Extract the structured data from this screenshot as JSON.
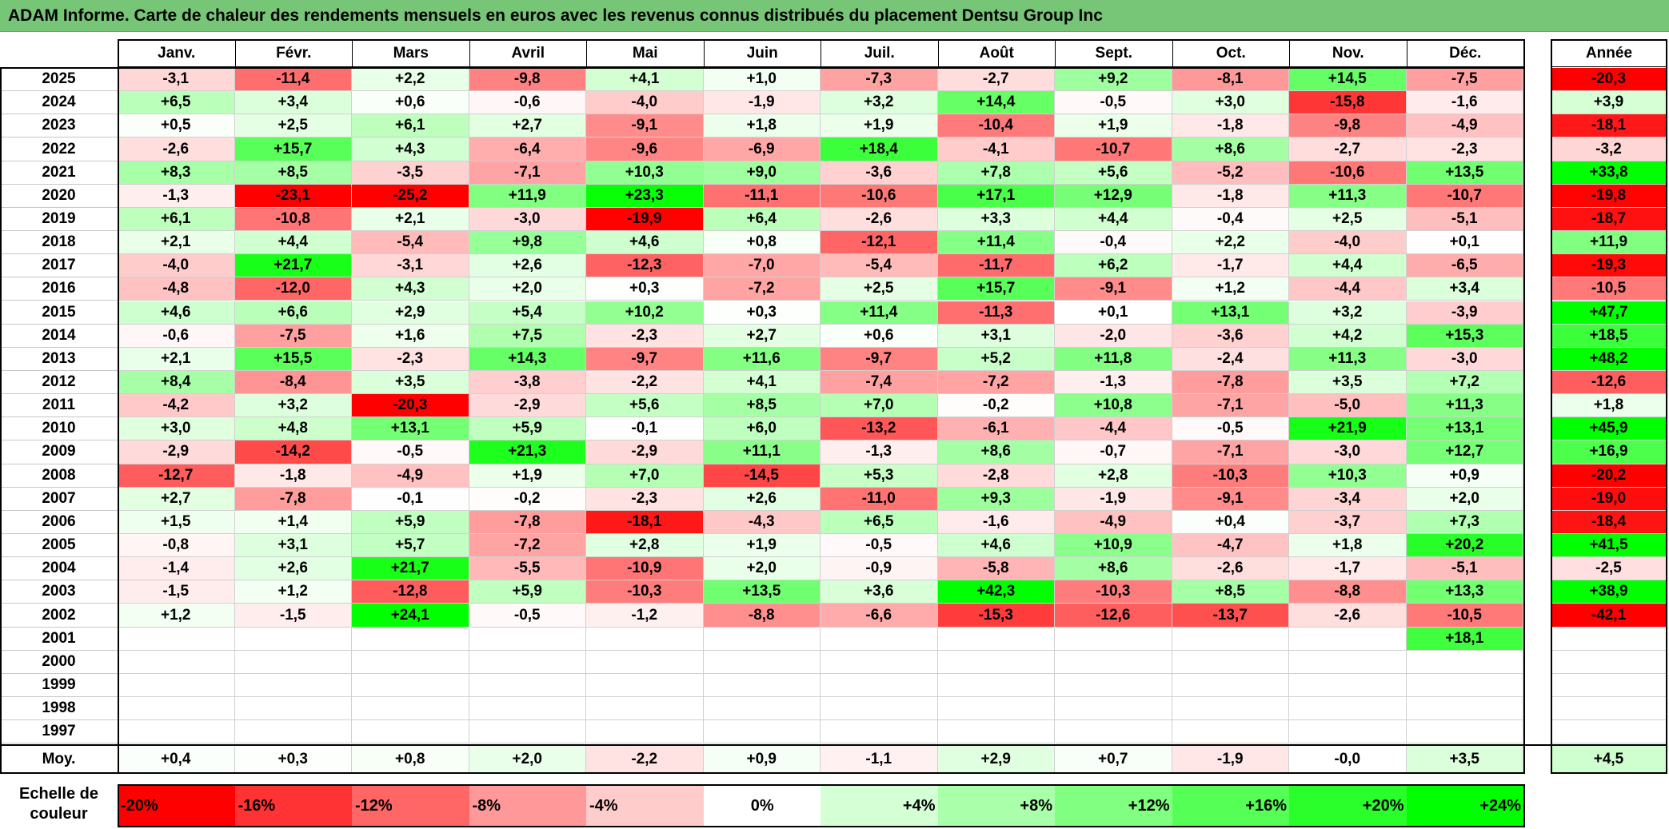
{
  "title": "ADAM Informe. Carte de chaleur des rendements mensuels en euros avec les revenus connus distribués du placement Dentsu Group Inc",
  "chart_data": {
    "type": "heatmap",
    "months": [
      "Janv.",
      "Févr.",
      "Mars",
      "Avril",
      "Mai",
      "Juin",
      "Juil.",
      "Août",
      "Sept.",
      "Oct.",
      "Nov.",
      "Déc."
    ],
    "year_header": "Année",
    "avg_label": "Moy.",
    "rows": [
      {
        "year": "2025",
        "values": [
          "-3,1",
          "-11,4",
          "+2,2",
          "-9,8",
          "+4,1",
          "+1,0",
          "-7,3",
          "-2,7",
          "+9,2",
          "-8,1",
          "+14,5",
          "-7,5"
        ],
        "annual": "-20,3"
      },
      {
        "year": "2024",
        "values": [
          "+6,5",
          "+3,4",
          "+0,6",
          "-0,6",
          "-4,0",
          "-1,9",
          "+3,2",
          "+14,4",
          "-0,5",
          "+3,0",
          "-15,8",
          "-1,6"
        ],
        "annual": "+3,9"
      },
      {
        "year": "2023",
        "values": [
          "+0,5",
          "+2,5",
          "+6,1",
          "+2,7",
          "-9,1",
          "+1,8",
          "+1,9",
          "-10,4",
          "+1,9",
          "-1,8",
          "-9,8",
          "-4,9"
        ],
        "annual": "-18,1"
      },
      {
        "year": "2022",
        "values": [
          "-2,6",
          "+15,7",
          "+4,3",
          "-6,4",
          "-9,6",
          "-6,9",
          "+18,4",
          "-4,1",
          "-10,7",
          "+8,6",
          "-2,7",
          "-2,3"
        ],
        "annual": "-3,2"
      },
      {
        "year": "2021",
        "values": [
          "+8,3",
          "+8,5",
          "-3,5",
          "-7,1",
          "+10,3",
          "+9,0",
          "-3,6",
          "+7,8",
          "+5,6",
          "-5,2",
          "-10,6",
          "+13,5"
        ],
        "annual": "+33,8"
      },
      {
        "year": "2020",
        "values": [
          "-1,3",
          "-23,1",
          "-25,2",
          "+11,9",
          "+23,3",
          "-11,1",
          "-10,6",
          "+17,1",
          "+12,9",
          "-1,8",
          "+11,3",
          "-10,7"
        ],
        "annual": "-19,8"
      },
      {
        "year": "2019",
        "values": [
          "+6,1",
          "-10,8",
          "+2,1",
          "-3,0",
          "-19,9",
          "+6,4",
          "-2,6",
          "+3,3",
          "+4,4",
          "-0,4",
          "+2,5",
          "-5,1"
        ],
        "annual": "-18,7"
      },
      {
        "year": "2018",
        "values": [
          "+2,1",
          "+4,4",
          "-5,4",
          "+9,8",
          "+4,6",
          "+0,8",
          "-12,1",
          "+11,4",
          "-0,4",
          "+2,2",
          "-4,0",
          "+0,1"
        ],
        "annual": "+11,9"
      },
      {
        "year": "2017",
        "values": [
          "-4,0",
          "+21,7",
          "-3,1",
          "+2,6",
          "-12,3",
          "-7,0",
          "-5,4",
          "-11,7",
          "+6,2",
          "-1,7",
          "+4,4",
          "-6,5"
        ],
        "annual": "-19,3"
      },
      {
        "year": "2016",
        "values": [
          "-4,8",
          "-12,0",
          "+4,3",
          "+2,0",
          "+0,3",
          "-7,2",
          "+2,5",
          "+15,7",
          "-9,1",
          "+1,2",
          "-4,4",
          "+3,4"
        ],
        "annual": "-10,5"
      },
      {
        "year": "2015",
        "values": [
          "+4,6",
          "+6,6",
          "+2,9",
          "+5,4",
          "+10,2",
          "+0,3",
          "+11,4",
          "-11,3",
          "+0,1",
          "+13,1",
          "+3,2",
          "-3,9"
        ],
        "annual": "+47,7"
      },
      {
        "year": "2014",
        "values": [
          "-0,6",
          "-7,5",
          "+1,6",
          "+7,5",
          "-2,3",
          "+2,7",
          "+0,6",
          "+3,1",
          "-2,0",
          "-3,6",
          "+4,2",
          "+15,3"
        ],
        "annual": "+18,5"
      },
      {
        "year": "2013",
        "values": [
          "+2,1",
          "+15,5",
          "-2,3",
          "+14,3",
          "-9,7",
          "+11,6",
          "-9,7",
          "+5,2",
          "+11,8",
          "-2,4",
          "+11,3",
          "-3,0"
        ],
        "annual": "+48,2"
      },
      {
        "year": "2012",
        "values": [
          "+8,4",
          "-8,4",
          "+3,5",
          "-3,8",
          "-2,2",
          "+4,1",
          "-7,4",
          "-7,2",
          "-1,3",
          "-7,8",
          "+3,5",
          "+7,2"
        ],
        "annual": "-12,6"
      },
      {
        "year": "2011",
        "values": [
          "-4,2",
          "+3,2",
          "-20,3",
          "-2,9",
          "+5,6",
          "+8,5",
          "+7,0",
          "-0,2",
          "+10,8",
          "-7,1",
          "-5,0",
          "+11,3"
        ],
        "annual": "+1,8"
      },
      {
        "year": "2010",
        "values": [
          "+3,0",
          "+4,8",
          "+13,1",
          "+5,9",
          "-0,1",
          "+6,0",
          "-13,2",
          "-6,1",
          "-4,4",
          "-0,5",
          "+21,9",
          "+13,1"
        ],
        "annual": "+45,9"
      },
      {
        "year": "2009",
        "values": [
          "-2,9",
          "-14,2",
          "-0,5",
          "+21,3",
          "-2,9",
          "+11,1",
          "-1,3",
          "+8,6",
          "-0,7",
          "-7,1",
          "-3,0",
          "+12,7"
        ],
        "annual": "+16,9"
      },
      {
        "year": "2008",
        "values": [
          "-12,7",
          "-1,8",
          "-4,9",
          "+1,9",
          "+7,0",
          "-14,5",
          "+5,3",
          "-2,8",
          "+2,8",
          "-10,3",
          "+10,3",
          "+0,9"
        ],
        "annual": "-20,2"
      },
      {
        "year": "2007",
        "values": [
          "+2,7",
          "-7,8",
          "-0,1",
          "-0,2",
          "-2,3",
          "+2,6",
          "-11,0",
          "+9,3",
          "-1,9",
          "-9,1",
          "-3,4",
          "+2,0"
        ],
        "annual": "-19,0"
      },
      {
        "year": "2006",
        "values": [
          "+1,5",
          "+1,4",
          "+5,9",
          "-7,8",
          "-18,1",
          "-4,3",
          "+6,5",
          "-1,6",
          "-4,9",
          "+0,4",
          "-3,7",
          "+7,3"
        ],
        "annual": "-18,4"
      },
      {
        "year": "2005",
        "values": [
          "-0,8",
          "+3,1",
          "+5,7",
          "-7,2",
          "+2,8",
          "+1,9",
          "-0,5",
          "+4,6",
          "+10,9",
          "-4,7",
          "+1,8",
          "+20,2"
        ],
        "annual": "+41,5"
      },
      {
        "year": "2004",
        "values": [
          "-1,4",
          "+2,6",
          "+21,7",
          "-5,5",
          "-10,9",
          "+2,0",
          "-0,9",
          "-5,8",
          "+8,6",
          "-2,6",
          "-1,7",
          "-5,1"
        ],
        "annual": "-2,5"
      },
      {
        "year": "2003",
        "values": [
          "-1,5",
          "+1,2",
          "-12,8",
          "+5,9",
          "-10,3",
          "+13,5",
          "+3,6",
          "+42,3",
          "-10,3",
          "+8,5",
          "-8,8",
          "+13,3"
        ],
        "annual": "+38,9"
      },
      {
        "year": "2002",
        "values": [
          "+1,2",
          "-1,5",
          "+24,1",
          "-0,5",
          "-1,2",
          "-8,8",
          "-6,6",
          "-15,3",
          "-12,6",
          "-13,7",
          "-2,6",
          "-10,5"
        ],
        "annual": "-42,1"
      },
      {
        "year": "2001",
        "values": [
          "",
          "",
          "",
          "",
          "",
          "",
          "",
          "",
          "",
          "",
          "",
          "+18,1"
        ],
        "annual": ""
      },
      {
        "year": "2000",
        "values": [
          "",
          "",
          "",
          "",
          "",
          "",
          "",
          "",
          "",
          "",
          "",
          ""
        ],
        "annual": ""
      },
      {
        "year": "1999",
        "values": [
          "",
          "",
          "",
          "",
          "",
          "",
          "",
          "",
          "",
          "",
          "",
          ""
        ],
        "annual": ""
      },
      {
        "year": "1998",
        "values": [
          "",
          "",
          "",
          "",
          "",
          "",
          "",
          "",
          "",
          "",
          "",
          ""
        ],
        "annual": ""
      },
      {
        "year": "1997",
        "values": [
          "",
          "",
          "",
          "",
          "",
          "",
          "",
          "",
          "",
          "",
          "",
          ""
        ],
        "annual": ""
      }
    ],
    "averages": [
      "+0,4",
      "+0,3",
      "+0,8",
      "+2,0",
      "-2,2",
      "+0,9",
      "-1,1",
      "+2,9",
      "+0,7",
      "-1,9",
      "-0,0",
      "+3,5"
    ],
    "avg_annual": "+4,5",
    "scale_label": "Echelle de couleur",
    "scale": [
      {
        "label": "-20%",
        "value": -20
      },
      {
        "label": "-16%",
        "value": -16
      },
      {
        "label": "-12%",
        "value": -12
      },
      {
        "label": "-8%",
        "value": -8
      },
      {
        "label": "-4%",
        "value": -4
      },
      {
        "label": "0%",
        "value": 0
      },
      {
        "label": "+4%",
        "value": 4
      },
      {
        "label": "+8%",
        "value": 8
      },
      {
        "label": "+12%",
        "value": 12
      },
      {
        "label": "+16%",
        "value": 16
      },
      {
        "label": "+20%",
        "value": 20
      },
      {
        "label": "+24%",
        "value": 24
      }
    ],
    "colors": {
      "max_red": "#ff0000",
      "max_green": "#00ff00",
      "neutral": "#ffffff"
    }
  }
}
